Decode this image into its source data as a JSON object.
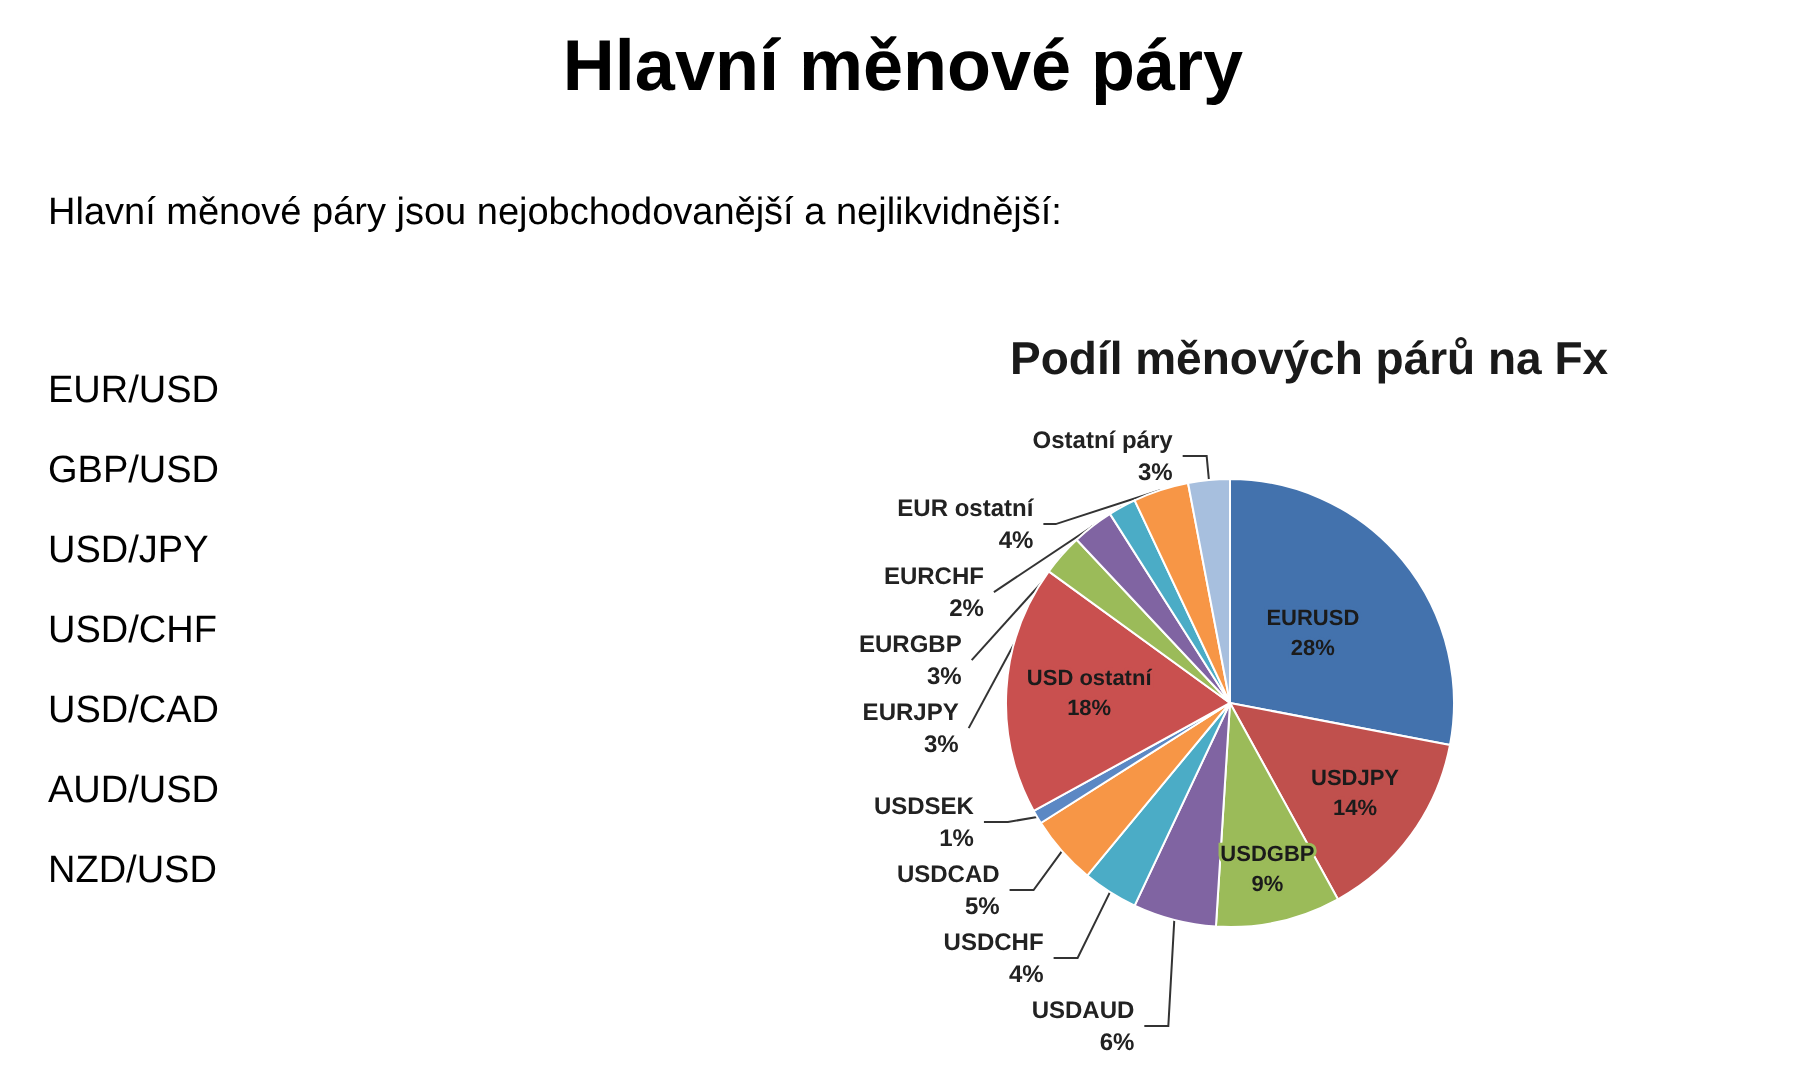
{
  "chart_data": {
    "type": "pie",
    "title": "Hlavní měnové páry",
    "subtitle": "Hlavní měnové páry jsou nejobchodovanější a nejlikvidnější:",
    "annotations": [
      "Podíl měnových párů na Fx",
      "EUR/USD",
      "GBP/USD",
      "USD/JPY",
      "USD/CHF",
      "USD/CAD",
      "AUD/USD",
      "NZD/USD"
    ],
    "categories": [
      "EURUSD",
      "USDJPY",
      "USDGBP",
      "USDAUD",
      "USDCHF",
      "USDCAD",
      "USDSEK",
      "USD ostatní",
      "EURJPY",
      "EURGBP",
      "EURCHF",
      "EUR ostatní",
      "Ostatní páry"
    ],
    "values": [
      28,
      14,
      9,
      6,
      4,
      5,
      1,
      18,
      3,
      3,
      2,
      4,
      3
    ],
    "value_labels": [
      "28%",
      "14%",
      "9%",
      "6%",
      "4%",
      "5%",
      "1%",
      "18%",
      "3%",
      "3%",
      "2%",
      "4%",
      "3%"
    ],
    "colors": [
      "#4372ad",
      "#c0504d",
      "#9bbb59",
      "#8064a2",
      "#4bacc6",
      "#f79646",
      "#5b88c4",
      "#c9504f",
      "#9bbb59",
      "#8064a2",
      "#4bacc6",
      "#f79646",
      "#a7bfde"
    ]
  }
}
